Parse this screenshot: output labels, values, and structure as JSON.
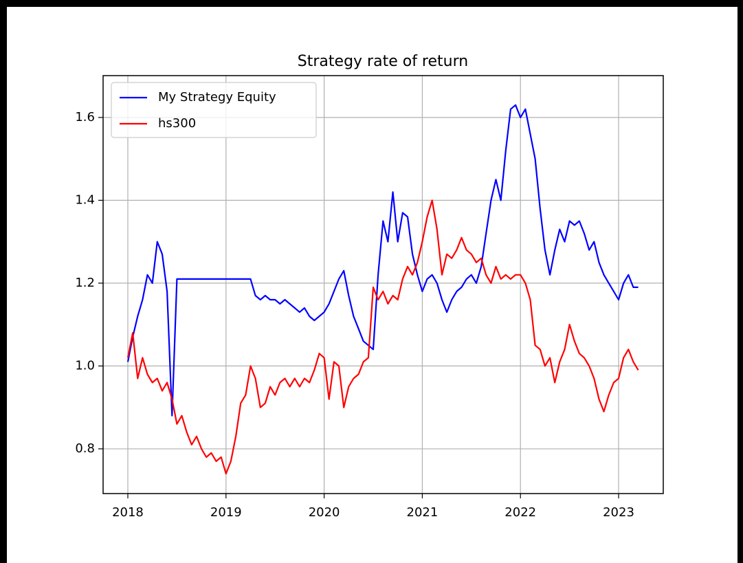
{
  "chart_data": {
    "type": "line",
    "title": "Strategy rate of return",
    "x": [
      2018,
      2018.05,
      2018.1,
      2018.15,
      2018.2,
      2018.25,
      2018.3,
      2018.35,
      2018.4,
      2018.45,
      2018.5,
      2018.55,
      2018.6,
      2018.65,
      2018.7,
      2018.75,
      2018.8,
      2018.85,
      2018.9,
      2018.95,
      2019,
      2019.05,
      2019.1,
      2019.15,
      2019.2,
      2019.25,
      2019.3,
      2019.35,
      2019.4,
      2019.45,
      2019.5,
      2019.55,
      2019.6,
      2019.65,
      2019.7,
      2019.75,
      2019.8,
      2019.85,
      2019.9,
      2019.95,
      2020,
      2020.05,
      2020.1,
      2020.15,
      2020.2,
      2020.25,
      2020.3,
      2020.35,
      2020.4,
      2020.45,
      2020.5,
      2020.55,
      2020.6,
      2020.65,
      2020.7,
      2020.75,
      2020.8,
      2020.85,
      2020.9,
      2020.95,
      2021,
      2021.05,
      2021.1,
      2021.15,
      2021.2,
      2021.25,
      2021.3,
      2021.35,
      2021.4,
      2021.45,
      2021.5,
      2021.55,
      2021.6,
      2021.65,
      2021.7,
      2021.75,
      2021.8,
      2021.85,
      2021.9,
      2021.95,
      2022,
      2022.05,
      2022.1,
      2022.15,
      2022.2,
      2022.25,
      2022.3,
      2022.35,
      2022.4,
      2022.45,
      2022.5,
      2022.55,
      2022.6,
      2022.65,
      2022.7,
      2022.75,
      2022.8,
      2022.85,
      2022.9,
      2022.95,
      2023,
      2023.05,
      2023.1,
      2023.15,
      2023.2
    ],
    "series": [
      {
        "name": "My Strategy Equity",
        "color": "#0000ff",
        "values": [
          1.01,
          1.07,
          1.12,
          1.16,
          1.22,
          1.2,
          1.3,
          1.27,
          1.18,
          0.88,
          1.21,
          1.21,
          1.21,
          1.21,
          1.21,
          1.21,
          1.21,
          1.21,
          1.21,
          1.21,
          1.21,
          1.21,
          1.21,
          1.21,
          1.21,
          1.21,
          1.17,
          1.16,
          1.17,
          1.16,
          1.16,
          1.15,
          1.16,
          1.15,
          1.14,
          1.13,
          1.14,
          1.12,
          1.11,
          1.12,
          1.13,
          1.15,
          1.18,
          1.21,
          1.23,
          1.17,
          1.12,
          1.09,
          1.06,
          1.05,
          1.04,
          1.22,
          1.35,
          1.3,
          1.42,
          1.3,
          1.37,
          1.36,
          1.27,
          1.22,
          1.18,
          1.21,
          1.22,
          1.2,
          1.16,
          1.13,
          1.16,
          1.18,
          1.19,
          1.21,
          1.22,
          1.2,
          1.24,
          1.32,
          1.4,
          1.45,
          1.4,
          1.52,
          1.62,
          1.63,
          1.6,
          1.62,
          1.56,
          1.5,
          1.38,
          1.28,
          1.22,
          1.28,
          1.33,
          1.3,
          1.35,
          1.34,
          1.35,
          1.32,
          1.28,
          1.3,
          1.25,
          1.22,
          1.2,
          1.18,
          1.16,
          1.2,
          1.22,
          1.19,
          1.19
        ]
      },
      {
        "name": "hs300",
        "color": "#ff0000",
        "values": [
          1.02,
          1.08,
          0.97,
          1.02,
          0.98,
          0.96,
          0.97,
          0.94,
          0.96,
          0.92,
          0.86,
          0.88,
          0.84,
          0.81,
          0.83,
          0.8,
          0.78,
          0.79,
          0.77,
          0.78,
          0.74,
          0.77,
          0.83,
          0.91,
          0.93,
          1.0,
          0.97,
          0.9,
          0.91,
          0.95,
          0.93,
          0.96,
          0.97,
          0.95,
          0.97,
          0.95,
          0.97,
          0.96,
          0.99,
          1.03,
          1.02,
          0.92,
          1.01,
          1.0,
          0.9,
          0.95,
          0.97,
          0.98,
          1.01,
          1.02,
          1.19,
          1.16,
          1.18,
          1.15,
          1.17,
          1.16,
          1.21,
          1.24,
          1.22,
          1.25,
          1.3,
          1.36,
          1.4,
          1.33,
          1.22,
          1.27,
          1.26,
          1.28,
          1.31,
          1.28,
          1.27,
          1.25,
          1.26,
          1.22,
          1.2,
          1.24,
          1.21,
          1.22,
          1.21,
          1.22,
          1.22,
          1.2,
          1.16,
          1.05,
          1.04,
          1.0,
          1.02,
          0.96,
          1.01,
          1.04,
          1.1,
          1.06,
          1.03,
          1.02,
          1.0,
          0.97,
          0.92,
          0.89,
          0.93,
          0.96,
          0.97,
          1.02,
          1.04,
          1.01,
          0.99
        ]
      }
    ],
    "xlim": [
      2017.748,
      2023.455
    ],
    "xticks": [
      2018,
      2019,
      2020,
      2021,
      2022,
      2023
    ],
    "ylim": [
      0.692,
      1.701
    ],
    "yticks": [
      0.8,
      {
        "value": 1,
        "label": "1.0"
      },
      1.2,
      1.4,
      1.6
    ],
    "grid": true,
    "legend": "upper left"
  }
}
